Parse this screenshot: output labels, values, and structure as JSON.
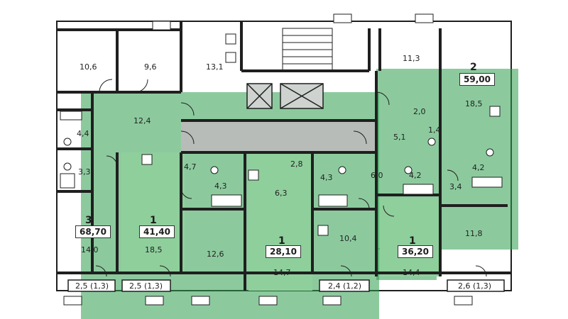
{
  "colors": {
    "wall": "#1f1f1f",
    "highlight": "#2e9e4e",
    "apartment_fill": "#8fcf9c",
    "corridor": "#b7bcb8"
  },
  "apartments": [
    {
      "id": "apt-3",
      "rooms": "3",
      "area": "68,70"
    },
    {
      "id": "apt-1a",
      "rooms": "1",
      "area": "41,40"
    },
    {
      "id": "apt-1b",
      "rooms": "1",
      "area": "28,10"
    },
    {
      "id": "apt-1c",
      "rooms": "1",
      "area": "36,20"
    },
    {
      "id": "apt-2",
      "rooms": "2",
      "area": "59,00"
    }
  ],
  "room_areas": {
    "r_10_6": "10,6",
    "r_9_6": "9,6",
    "r_13_1": "13,1",
    "r_11_3": "11,3",
    "r_18_5_top": "18,5",
    "r_12_4": "12,4",
    "r_4_4": "4,4",
    "r_3_3": "3,3",
    "r_14_0": "14,0",
    "r_4_7": "4,7",
    "r_4_3a": "4,3",
    "r_18_5_mid": "18,5",
    "r_12_6": "12,6",
    "r_2_8": "2,8",
    "r_4_3b": "4,3",
    "r_6_3": "6,3",
    "r_14_7": "14,7",
    "r_10_4": "10,4",
    "r_6_0": "6,0",
    "r_4_2a": "4,2",
    "r_14_4": "14,4",
    "r_2_0": "2,0",
    "r_1_4": "1,4",
    "r_5_1": "5,1",
    "r_4_2b": "4,2",
    "r_3_4": "3,4",
    "r_11_8": "11,8"
  },
  "balconies": {
    "b1": "2,5 (1,3)",
    "b2": "2,5 (1,3)",
    "b3": "2,4 (1,2)",
    "b4": "2,6 (1,3)"
  }
}
